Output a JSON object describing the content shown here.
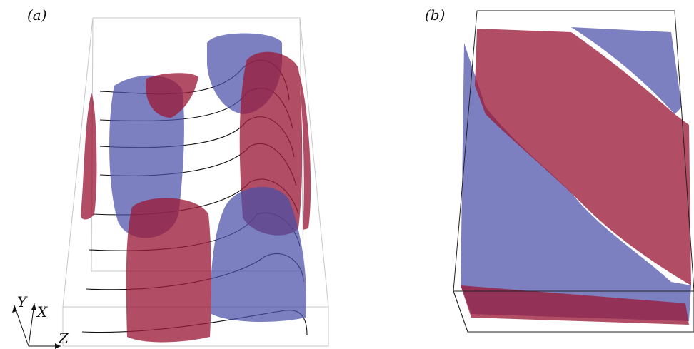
{
  "panels": [
    {
      "label": "(a)",
      "axes": {
        "y": "Y",
        "x": "X",
        "z": "Z"
      }
    },
    {
      "label": "(b)"
    }
  ]
}
